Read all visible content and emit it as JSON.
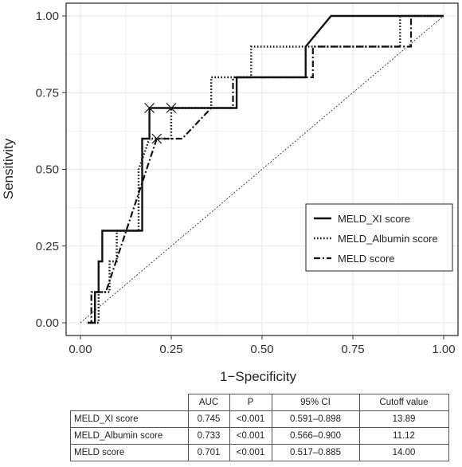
{
  "chart_data": {
    "type": "line",
    "xlabel": "1−Specificity",
    "ylabel": "Sensitivity",
    "xlim": [
      0,
      1
    ],
    "ylim": [
      0,
      1
    ],
    "x_ticks": [
      "0.00",
      "0.25",
      "0.50",
      "0.75",
      "1.00"
    ],
    "y_ticks": [
      "0.00",
      "0.25",
      "0.50",
      "0.75",
      "1.00"
    ],
    "grid": true,
    "legend_position": "right",
    "reference_line": "diagonal",
    "series": [
      {
        "name": "MELD_XI score",
        "style": "solid",
        "points": [
          [
            0.02,
            0
          ],
          [
            0.04,
            0
          ],
          [
            0.04,
            0.1
          ],
          [
            0.05,
            0.1
          ],
          [
            0.05,
            0.2
          ],
          [
            0.06,
            0.2
          ],
          [
            0.06,
            0.3
          ],
          [
            0.17,
            0.3
          ],
          [
            0.17,
            0.6
          ],
          [
            0.19,
            0.6
          ],
          [
            0.19,
            0.7
          ],
          [
            0.43,
            0.7
          ],
          [
            0.43,
            0.8
          ],
          [
            0.62,
            0.8
          ],
          [
            0.62,
            0.9
          ],
          [
            0.69,
            1.0
          ],
          [
            1.0,
            1.0
          ]
        ],
        "cutoff_point": [
          0.19,
          0.7
        ]
      },
      {
        "name": "MELD_Albumin score",
        "style": "dotted",
        "points": [
          [
            0.02,
            0
          ],
          [
            0.05,
            0
          ],
          [
            0.05,
            0.1
          ],
          [
            0.08,
            0.1
          ],
          [
            0.08,
            0.2
          ],
          [
            0.1,
            0.2
          ],
          [
            0.1,
            0.3
          ],
          [
            0.16,
            0.3
          ],
          [
            0.16,
            0.5
          ],
          [
            0.19,
            0.6
          ],
          [
            0.25,
            0.6
          ],
          [
            0.25,
            0.7
          ],
          [
            0.36,
            0.7
          ],
          [
            0.36,
            0.8
          ],
          [
            0.47,
            0.8
          ],
          [
            0.47,
            0.9
          ],
          [
            0.88,
            0.9
          ],
          [
            0.88,
            1.0
          ],
          [
            1.0,
            1.0
          ]
        ],
        "cutoff_point": [
          0.25,
          0.7
        ]
      },
      {
        "name": "MELD score",
        "style": "dashed",
        "points": [
          [
            0.02,
            0
          ],
          [
            0.03,
            0
          ],
          [
            0.03,
            0.1
          ],
          [
            0.07,
            0.1
          ],
          [
            0.21,
            0.6
          ],
          [
            0.28,
            0.6
          ],
          [
            0.36,
            0.7
          ],
          [
            0.42,
            0.7
          ],
          [
            0.42,
            0.8
          ],
          [
            0.64,
            0.8
          ],
          [
            0.64,
            0.9
          ],
          [
            0.91,
            0.9
          ],
          [
            0.91,
            1.0
          ],
          [
            1.0,
            1.0
          ]
        ],
        "cutoff_point": [
          0.21,
          0.6
        ]
      }
    ]
  },
  "table": {
    "headers": [
      "",
      "AUC",
      "P",
      "95% CI",
      "Cutoff value"
    ],
    "rows": [
      [
        "MELD_XI score",
        "0.745",
        "<0.001",
        "0.591–0.898",
        "13.89"
      ],
      [
        "MELD_Albumin score",
        "0.733",
        "<0.001",
        "0.566–0.900",
        "11.12"
      ],
      [
        "MELD score",
        "0.701",
        "<0.001",
        "0.517–0.885",
        "14.00"
      ]
    ]
  }
}
